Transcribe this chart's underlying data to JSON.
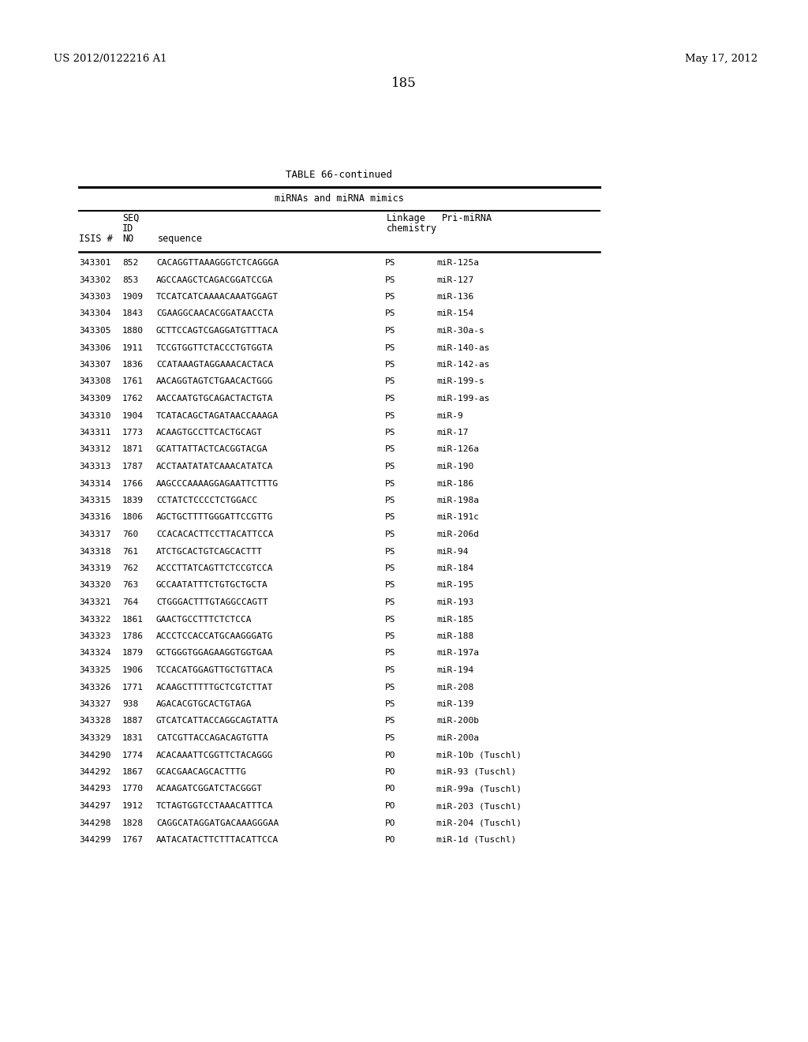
{
  "header_left": "US 2012/0122216 A1",
  "header_right": "May 17, 2012",
  "page_number": "185",
  "table_title": "TABLE 66-continued",
  "table_subtitle": "miRNAs and miRNA mimics",
  "rows": [
    [
      "343301",
      "852",
      "CACAGGTTAAAGGGTCTCAGGGA",
      "PS",
      "miR-125a"
    ],
    [
      "343302",
      "853",
      "AGCCAAGCTCAGACGGATCCGA",
      "PS",
      "miR-127"
    ],
    [
      "343303",
      "1909",
      "TCCATCATCAAAACAAATGGAGT",
      "PS",
      "miR-136"
    ],
    [
      "343304",
      "1843",
      "CGAAGGCAACACGGATAACCTA",
      "PS",
      "miR-154"
    ],
    [
      "343305",
      "1880",
      "GCTTCCAGTCGAGGATGTTTACA",
      "PS",
      "miR-30a-s"
    ],
    [
      "343306",
      "1911",
      "TCCGTGGTTCTACCCTGTGGTA",
      "PS",
      "miR-140-as"
    ],
    [
      "343307",
      "1836",
      "CCATAAAGTAGGAAACACTACA",
      "PS",
      "miR-142-as"
    ],
    [
      "343308",
      "1761",
      "AACAGGTAGTCTGAACACTGGG",
      "PS",
      "miR-199-s"
    ],
    [
      "343309",
      "1762",
      "AACCAATGTGCAGACTACTGTA",
      "PS",
      "miR-199-as"
    ],
    [
      "343310",
      "1904",
      "TCATACAGCTAGATAACCAAAGA",
      "PS",
      "miR-9"
    ],
    [
      "343311",
      "1773",
      "ACAAGTGCCTTCACTGCAGT",
      "PS",
      "miR-17"
    ],
    [
      "343312",
      "1871",
      "GCATTATTACTCACGGTACGA",
      "PS",
      "miR-126a"
    ],
    [
      "343313",
      "1787",
      "ACCTAATATATCAAACATATCA",
      "PS",
      "miR-190"
    ],
    [
      "343314",
      "1766",
      "AAGCCCAAAAGGAGAATTCTTTG",
      "PS",
      "miR-186"
    ],
    [
      "343315",
      "1839",
      "CCTATCTCCCCTCTGGACC",
      "PS",
      "miR-198a"
    ],
    [
      "343316",
      "1806",
      "AGCTGCTTTTGGGATTCCGTTG",
      "PS",
      "miR-191c"
    ],
    [
      "343317",
      "760",
      "CCACACACTTCCTTACATTCCA",
      "PS",
      "miR-206d"
    ],
    [
      "343318",
      "761",
      "ATCTGCACTGTCAGCACTTT",
      "PS",
      "miR-94"
    ],
    [
      "343319",
      "762",
      "ACCCТTATCAGTTCTCCGTCCA",
      "PS",
      "miR-184"
    ],
    [
      "343320",
      "763",
      "GCCAATATTTCTGTGCTGCTA",
      "PS",
      "miR-195"
    ],
    [
      "343321",
      "764",
      "CTGGGACTTTGTAGGCCAGTT",
      "PS",
      "miR-193"
    ],
    [
      "343322",
      "1861",
      "GAACTGCCTTTCTCTCCA",
      "PS",
      "miR-185"
    ],
    [
      "343323",
      "1786",
      "ACCCTCCACCATGCAAGGGATG",
      "PS",
      "miR-188"
    ],
    [
      "343324",
      "1879",
      "GCTGGGTGGAGAAGGTGGTGAA",
      "PS",
      "miR-197a"
    ],
    [
      "343325",
      "1906",
      "TCCACATGGAGTTGCTGTTACA",
      "PS",
      "miR-194"
    ],
    [
      "343326",
      "1771",
      "ACAAGCTTTTTGCTCGTCTTAT",
      "PS",
      "miR-208"
    ],
    [
      "343327",
      "938",
      "AGACACGTGCACTGTAGA",
      "PS",
      "miR-139"
    ],
    [
      "343328",
      "1887",
      "GTCATCATTACCAGGCAGTATTA",
      "PS",
      "miR-200b"
    ],
    [
      "343329",
      "1831",
      "CATCGTTACCAGACAGTGTTA",
      "PS",
      "miR-200a"
    ],
    [
      "344290",
      "1774",
      "ACACAAATTCGGTTCTACAGGG",
      "PO",
      "miR-10b (Tuschl)"
    ],
    [
      "344292",
      "1867",
      "GCACGAACAGCACTTTG",
      "PO",
      "miR-93 (Tuschl)"
    ],
    [
      "344293",
      "1770",
      "ACAAGATCGGATCTACGGGT",
      "PO",
      "miR-99a (Tuschl)"
    ],
    [
      "344297",
      "1912",
      "TCTAGTGGTCCTAAACATTTCA",
      "PO",
      "miR-203 (Tuschl)"
    ],
    [
      "344298",
      "1828",
      "CAGGCATAGGATGACAAAGGGAA",
      "PO",
      "miR-204 (Tuschl)"
    ],
    [
      "344299",
      "1767",
      "AATACATACTTCTTTACATTCCA",
      "PO",
      "miR-1d (Tuschl)"
    ]
  ],
  "background_color": "#ffffff",
  "text_color": "#000000"
}
